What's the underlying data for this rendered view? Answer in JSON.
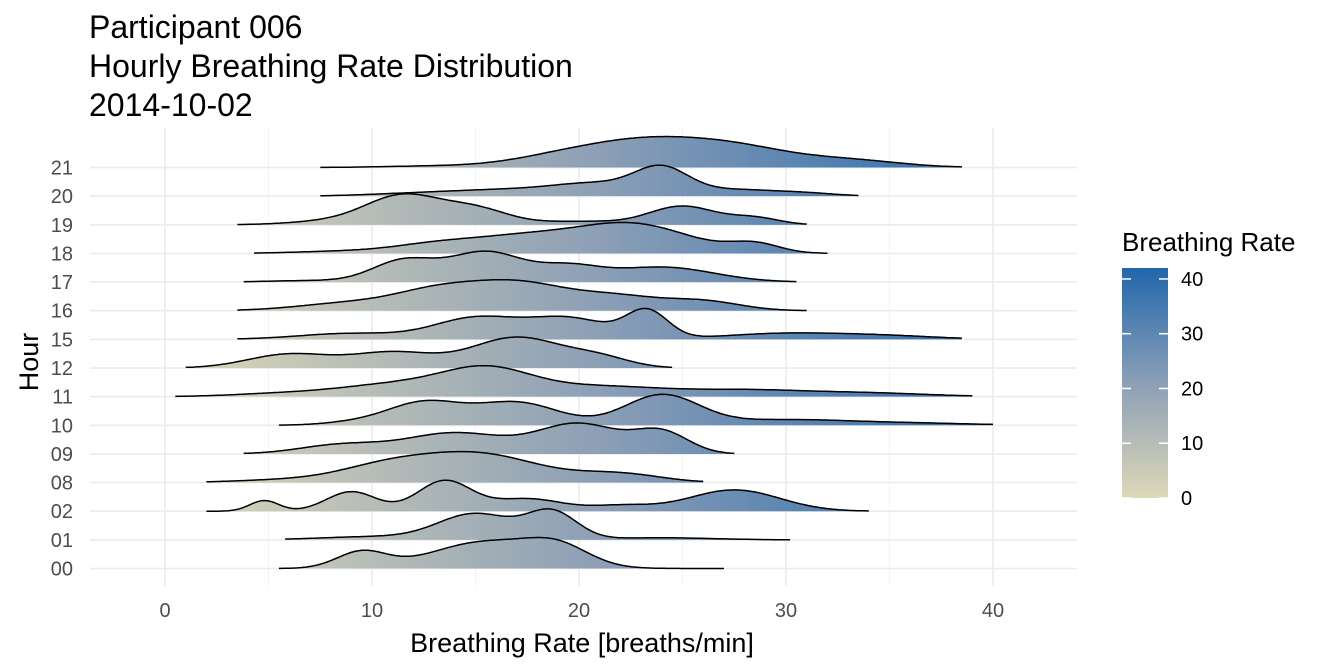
{
  "chart_data": {
    "type": "ridgeline",
    "title": "Participant 006",
    "subtitle_lines": [
      "Hourly Breathing Rate Distribution",
      "2014-10-02"
    ],
    "xlabel": "Breathing Rate [breaths/min]",
    "ylabel": "Hour",
    "xlim": [
      -3.5,
      44
    ],
    "x_ticks": [
      0,
      10,
      20,
      30,
      40
    ],
    "grid": true,
    "fill_gradient": {
      "low": "#ddd8b8",
      "high": "#2166ac",
      "range": [
        0,
        42
      ]
    },
    "legend": {
      "title": "Breathing Rate",
      "placement": "right",
      "ticks": [
        0,
        10,
        20,
        30,
        40
      ]
    },
    "series": [
      {
        "name": "00",
        "range": [
          5.5,
          27
        ],
        "peaks": [
          [
            9.5,
            0.55,
            1.2
          ],
          [
            15.5,
            0.9,
            2.6
          ],
          [
            19,
            0.6,
            1.5
          ]
        ]
      },
      {
        "name": "01",
        "range": [
          5.8,
          30.2
        ],
        "peaks": [
          [
            10,
            0.12,
            2.5
          ],
          [
            15,
            1.0,
            1.8
          ],
          [
            18.7,
            1.05,
            1.2
          ],
          [
            24,
            0.08,
            2.5
          ]
        ]
      },
      {
        "name": "02",
        "range": [
          2,
          34
        ],
        "peaks": [
          [
            4.8,
            0.3,
            0.7
          ],
          [
            9,
            0.55,
            1.2
          ],
          [
            13.5,
            0.85,
            1.3
          ],
          [
            17.5,
            0.35,
            1.7
          ],
          [
            22,
            0.15,
            1.5
          ],
          [
            27.5,
            0.6,
            2.2
          ]
        ]
      },
      {
        "name": "08",
        "range": [
          2,
          26
        ],
        "peaks": [
          [
            6,
            0.1,
            2.5
          ],
          [
            10.5,
            0.45,
            2.2
          ],
          [
            15,
            1.05,
            3.0
          ],
          [
            22,
            0.3,
            2.0
          ]
        ]
      },
      {
        "name": "09",
        "range": [
          3.8,
          27.5
        ],
        "peaks": [
          [
            8.5,
            0.3,
            2.0
          ],
          [
            14,
            0.7,
            2.4
          ],
          [
            20,
            1.0,
            2.0
          ],
          [
            24,
            0.7,
            1.3
          ]
        ]
      },
      {
        "name": "10",
        "range": [
          5.5,
          40
        ],
        "peaks": [
          [
            9,
            0.08,
            1.5
          ],
          [
            12.5,
            0.75,
            1.8
          ],
          [
            17,
            0.75,
            2.0
          ],
          [
            24,
            1.0,
            1.8
          ],
          [
            30,
            0.18,
            3.0
          ],
          [
            36,
            0.07,
            3.0
          ]
        ]
      },
      {
        "name": "11",
        "range": [
          0.5,
          39
        ],
        "peaks": [
          [
            6,
            0.12,
            2.5
          ],
          [
            11,
            0.4,
            2.5
          ],
          [
            15.5,
            0.95,
            2.2
          ],
          [
            21,
            0.35,
            3.0
          ],
          [
            28,
            0.22,
            3.0
          ],
          [
            34,
            0.12,
            3.0
          ]
        ]
      },
      {
        "name": "12",
        "range": [
          1,
          24.5
        ],
        "peaks": [
          [
            6,
            0.45,
            2.0
          ],
          [
            11,
            0.5,
            2.0
          ],
          [
            17,
            1.0,
            2.2
          ],
          [
            21,
            0.3,
            1.5
          ]
        ]
      },
      {
        "name": "15",
        "range": [
          3.5,
          38.5
        ],
        "peaks": [
          [
            9,
            0.2,
            2.5
          ],
          [
            15,
            0.7,
            2.0
          ],
          [
            19.5,
            0.7,
            2.0
          ],
          [
            23.3,
            0.9,
            1.0
          ],
          [
            30,
            0.2,
            3.0
          ],
          [
            35,
            0.1,
            2.5
          ]
        ]
      },
      {
        "name": "16",
        "range": [
          3.5,
          31
        ],
        "peaks": [
          [
            9,
            0.25,
            2.5
          ],
          [
            13,
            0.5,
            2.0
          ],
          [
            17,
            0.9,
            2.5
          ],
          [
            22,
            0.4,
            2.0
          ],
          [
            26,
            0.3,
            1.8
          ]
        ]
      },
      {
        "name": "17",
        "range": [
          3.8,
          30.5
        ],
        "peaks": [
          [
            7,
            0.05,
            2.0
          ],
          [
            11.5,
            0.7,
            1.5
          ],
          [
            15.5,
            1.0,
            1.8
          ],
          [
            19.5,
            0.45,
            1.5
          ],
          [
            24,
            0.5,
            2.5
          ]
        ]
      },
      {
        "name": "18",
        "range": [
          4.3,
          32
        ],
        "peaks": [
          [
            9,
            0.08,
            2.5
          ],
          [
            13,
            0.25,
            2.0
          ],
          [
            17,
            0.5,
            2.5
          ],
          [
            22.5,
            1.0,
            2.8
          ],
          [
            28.5,
            0.3,
            1.2
          ]
        ]
      },
      {
        "name": "19",
        "range": [
          3.5,
          31
        ],
        "peaks": [
          [
            8,
            0.1,
            2.0
          ],
          [
            11.5,
            0.85,
            1.8
          ],
          [
            15,
            0.45,
            1.6
          ],
          [
            20,
            0.1,
            2.0
          ],
          [
            25,
            0.55,
            1.6
          ],
          [
            28.5,
            0.2,
            1.2
          ]
        ]
      },
      {
        "name": "20",
        "range": [
          7.5,
          33.5
        ],
        "peaks": [
          [
            12,
            0.08,
            2.5
          ],
          [
            17,
            0.25,
            3.0
          ],
          [
            21,
            0.4,
            2.0
          ],
          [
            24,
            1.0,
            1.3
          ],
          [
            27.5,
            0.25,
            2.0
          ],
          [
            31,
            0.1,
            1.5
          ]
        ]
      },
      {
        "name": "21",
        "range": [
          7.5,
          38.5
        ],
        "peaks": [
          [
            13,
            0.05,
            2.5
          ],
          [
            19,
            0.3,
            2.5
          ],
          [
            23.5,
            0.9,
            3.0
          ],
          [
            28,
            0.5,
            2.5
          ],
          [
            33,
            0.25,
            2.5
          ]
        ]
      }
    ]
  }
}
